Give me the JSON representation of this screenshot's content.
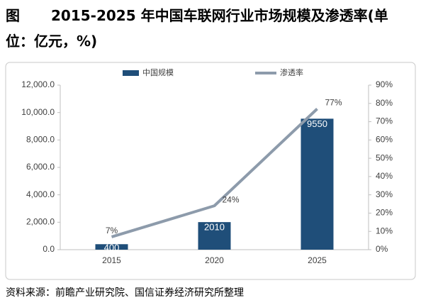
{
  "figure_label": "图",
  "source": "资料来源：前瞻产业研究院、国信证券经济研究所整理",
  "chart_data": {
    "type": "combo",
    "title": "2015-2025 年中国车联网行业市场规模及渗透率(单位：亿元，%)",
    "categories": [
      "2015",
      "2020",
      "2025"
    ],
    "series": [
      {
        "name": "中国规模",
        "type": "bar",
        "color": "#1f4e79",
        "values": [
          400,
          2010,
          9550
        ]
      },
      {
        "name": "渗透率",
        "type": "line",
        "axis": "y2",
        "color": "#8d9bab",
        "values": [
          7,
          24,
          77
        ],
        "value_labels": [
          "7%",
          "24%",
          "77%"
        ]
      }
    ],
    "ylim": [
      0,
      12000
    ],
    "yticks": [
      {
        "value": 0,
        "label": "0.0"
      },
      {
        "value": 2000,
        "label": "2,000.0"
      },
      {
        "value": 4000,
        "label": "4,000.0"
      },
      {
        "value": 6000,
        "label": "6,000.0"
      },
      {
        "value": 8000,
        "label": "8,000.0"
      },
      {
        "value": 10000,
        "label": "10,000.0"
      },
      {
        "value": 12000,
        "label": "12,000.0"
      }
    ],
    "y2lim": [
      0,
      90
    ],
    "y2ticks": [
      {
        "value": 0,
        "label": "0%"
      },
      {
        "value": 10,
        "label": "10%"
      },
      {
        "value": 20,
        "label": "20%"
      },
      {
        "value": 30,
        "label": "30%"
      },
      {
        "value": 40,
        "label": "40%"
      },
      {
        "value": 50,
        "label": "50%"
      },
      {
        "value": 60,
        "label": "60%"
      },
      {
        "value": 70,
        "label": "70%"
      },
      {
        "value": 80,
        "label": "80%"
      },
      {
        "value": 90,
        "label": "90%"
      }
    ],
    "legend": "top"
  }
}
